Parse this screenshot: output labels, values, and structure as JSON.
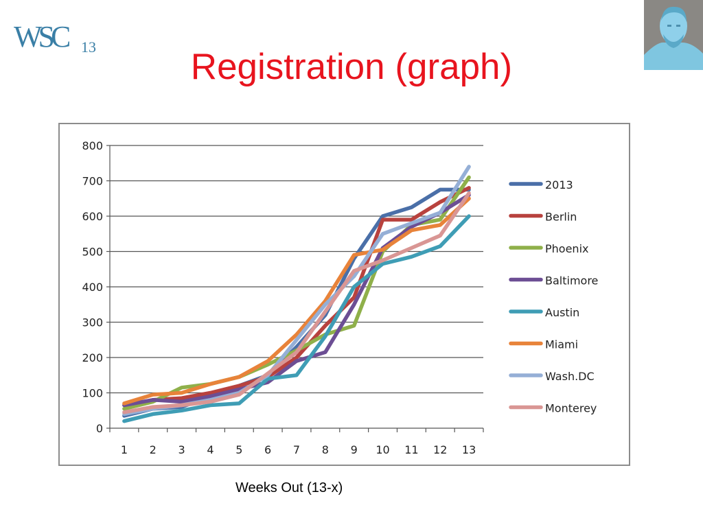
{
  "header": {
    "title": "Registration (graph)",
    "logo_text": "WSC",
    "logo_sub": "13"
  },
  "caption": "Weeks Out (13-x)",
  "colors": {
    "title": "#e8141e",
    "logo": "#3a7fa6",
    "grid": "#555555",
    "frame": "#8c8c8c"
  },
  "icons": {
    "portrait": "lincoln-portrait-icon"
  },
  "chart_data": {
    "type": "line",
    "title": "",
    "xlabel": "",
    "ylabel": "",
    "x": [
      "1",
      "2",
      "3",
      "4",
      "5",
      "6",
      "7",
      "8",
      "9",
      "10",
      "11",
      "12",
      "13"
    ],
    "ylim": [
      0,
      800
    ],
    "yticks": [
      "0",
      "100",
      "200",
      "300",
      "400",
      "500",
      "600",
      "700",
      "800"
    ],
    "grid": true,
    "legend_position": "right",
    "series": [
      {
        "name": "2013",
        "color": "#4a6fa8",
        "values": [
          35,
          55,
          60,
          90,
          120,
          150,
          230,
          320,
          480,
          600,
          625,
          675,
          675
        ]
      },
      {
        "name": "Berlin",
        "color": "#b8423e",
        "values": [
          65,
          80,
          85,
          100,
          120,
          145,
          200,
          290,
          370,
          590,
          590,
          640,
          680
        ]
      },
      {
        "name": "Phoenix",
        "color": "#8fb04a",
        "values": [
          55,
          75,
          115,
          125,
          145,
          180,
          220,
          265,
          290,
          500,
          575,
          590,
          710
        ]
      },
      {
        "name": "Baltimore",
        "color": "#6c4e94",
        "values": [
          65,
          80,
          75,
          90,
          110,
          130,
          190,
          215,
          350,
          510,
          570,
          610,
          660
        ]
      },
      {
        "name": "Austin",
        "color": "#3f9db5",
        "values": [
          20,
          40,
          50,
          65,
          70,
          140,
          150,
          260,
          400,
          465,
          485,
          515,
          600
        ]
      },
      {
        "name": "Miami",
        "color": "#e8833a",
        "values": [
          70,
          95,
          100,
          125,
          145,
          190,
          265,
          360,
          490,
          505,
          560,
          575,
          650
        ]
      },
      {
        "name": "Wash.DC",
        "color": "#95afd6",
        "values": [
          40,
          55,
          65,
          80,
          100,
          150,
          250,
          350,
          430,
          550,
          580,
          610,
          740
        ]
      },
      {
        "name": "Monterey",
        "color": "#d99694",
        "values": [
          45,
          60,
          65,
          75,
          95,
          155,
          215,
          330,
          445,
          475,
          510,
          545,
          665
        ]
      }
    ]
  }
}
